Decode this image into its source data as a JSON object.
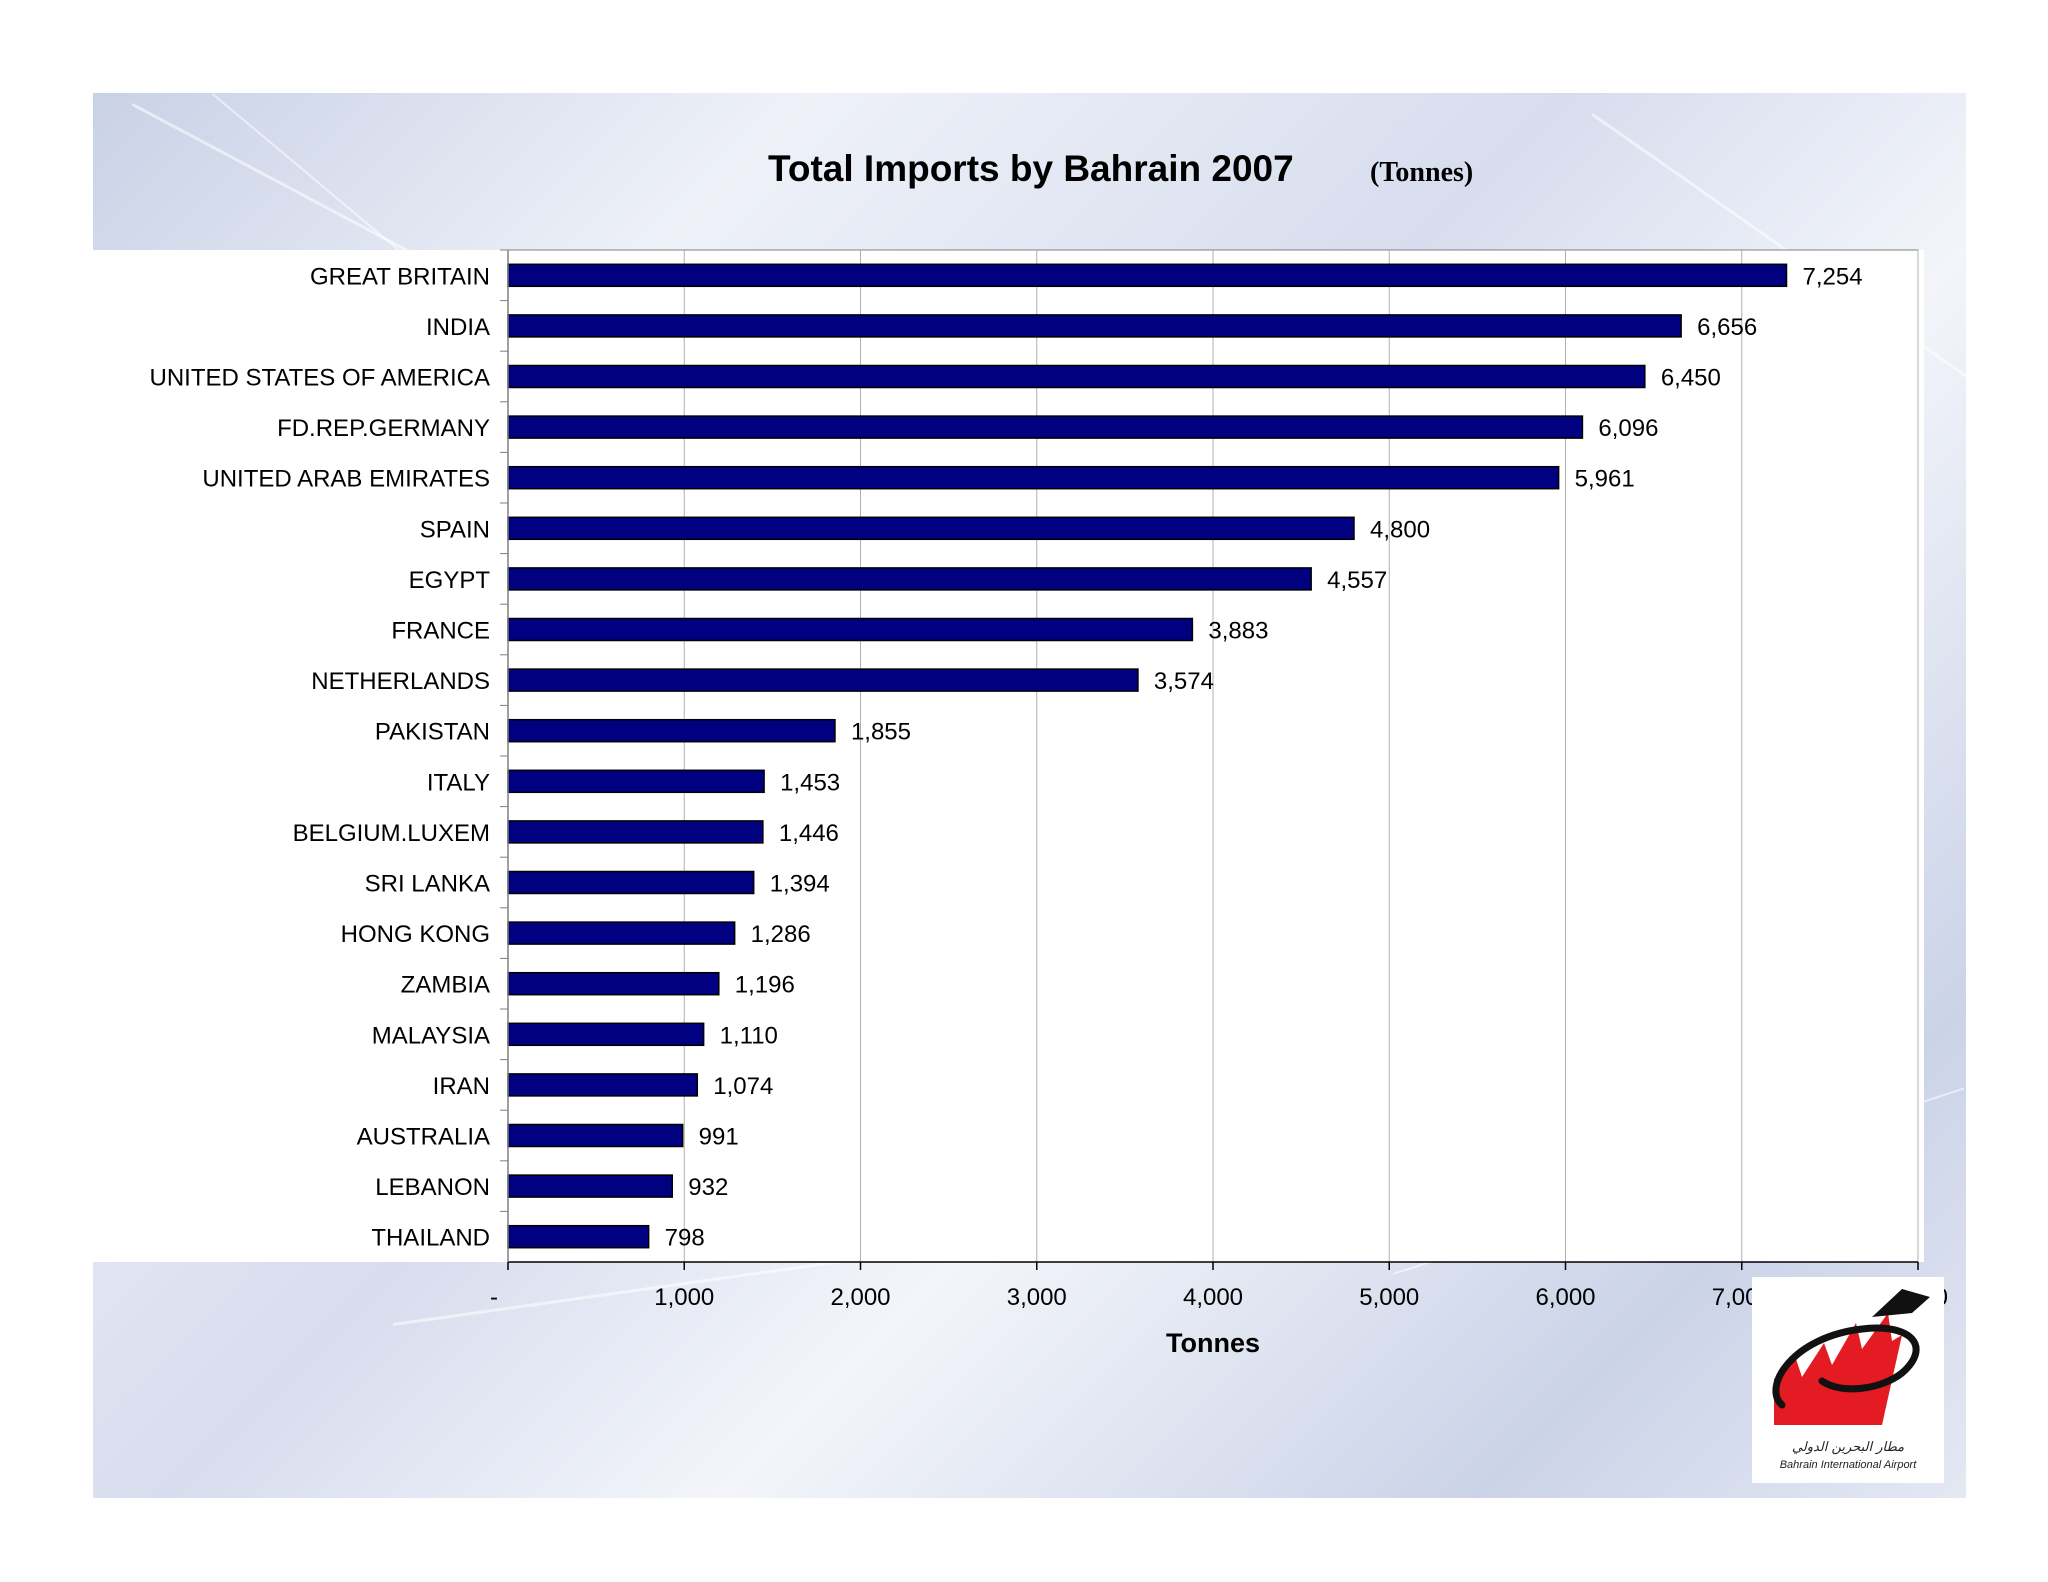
{
  "logo": {
    "arabic_text": "مطار البحرين الدولي",
    "english_text": "Bahrain International Airport",
    "colors": {
      "red": "#e41b23",
      "black": "#111111"
    }
  },
  "colors": {
    "bar_fill": "#000080",
    "bar_stroke": "#000000",
    "plot_background": "#ffffff",
    "gridline": "#b0b0b0"
  },
  "chart_data": {
    "type": "bar",
    "orientation": "horizontal",
    "title": "Total Imports by Bahrain 2007",
    "unit_label": "(Tonnes)",
    "xlabel": "Tonnes",
    "ylabel": "",
    "categories": [
      "GREAT BRITAIN",
      "INDIA",
      "UNITED STATES OF AMERICA",
      "FD.REP.GERMANY",
      "UNITED ARAB EMIRATES",
      "SPAIN",
      "EGYPT",
      "FRANCE",
      "NETHERLANDS",
      "PAKISTAN",
      "ITALY",
      "BELGIUM.LUXEM",
      "SRI LANKA",
      "HONG KONG",
      "ZAMBIA",
      "MALAYSIA",
      "IRAN",
      "AUSTRALIA",
      "LEBANON",
      "THAILAND"
    ],
    "values": [
      7254,
      6656,
      6450,
      6096,
      5961,
      4800,
      4557,
      3883,
      3574,
      1855,
      1453,
      1446,
      1394,
      1286,
      1196,
      1110,
      1074,
      991,
      932,
      798
    ],
    "value_labels": [
      "7,254",
      "6,656",
      "6,450",
      "6,096",
      "5,961",
      "4,800",
      "4,557",
      "3,883",
      "3,574",
      "1,855",
      "1,453",
      "1,446",
      "1,394",
      "1,286",
      "1,196",
      "1,110",
      "1,074",
      "991",
      "932",
      "798"
    ],
    "xlim": [
      0,
      8000
    ],
    "xticks": [
      0,
      1000,
      2000,
      3000,
      4000,
      5000,
      6000,
      7000,
      8000
    ],
    "xtick_labels": [
      "-",
      "1,000",
      "2,000",
      "3,000",
      "4,000",
      "5,000",
      "6,000",
      "7,000",
      "8,000"
    ],
    "grid": "vertical",
    "legend": "none"
  }
}
